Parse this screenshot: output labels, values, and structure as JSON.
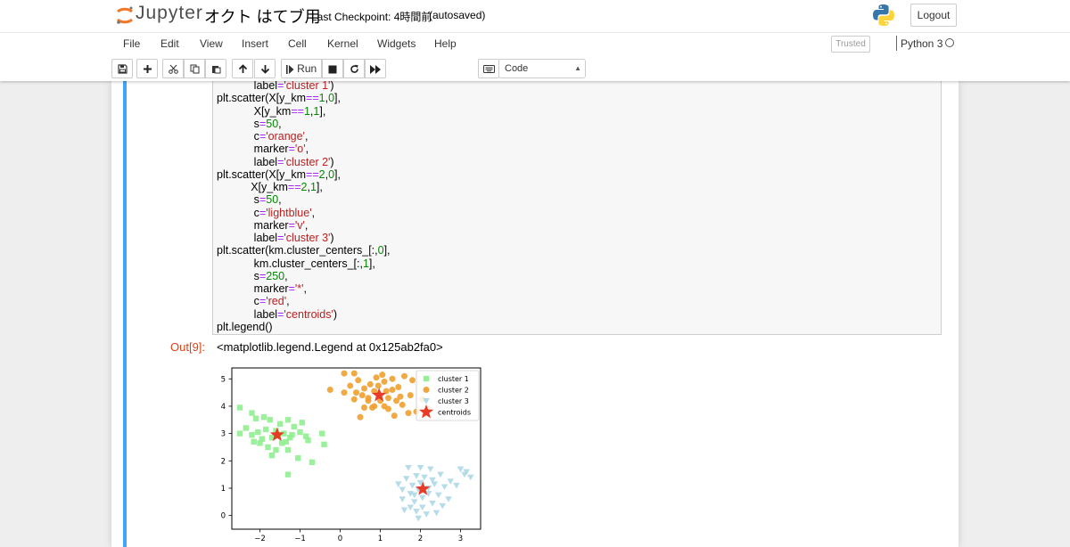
{
  "header": {
    "logo_text": "Jupyter",
    "notebook_title": "オクト はてブ用",
    "checkpoint": "Last Checkpoint: 4時間前",
    "autosave": "(autosaved)",
    "logout_label": "Logout"
  },
  "menu": {
    "items": [
      "File",
      "Edit",
      "View",
      "Insert",
      "Cell",
      "Kernel",
      "Widgets",
      "Help"
    ],
    "trusted_label": "Trusted",
    "kernel_name": "Python 3"
  },
  "toolbar": {
    "run_label": "Run",
    "cell_type": "Code",
    "icons": [
      "save-icon",
      "plus-icon",
      "cut-icon",
      "copy-icon",
      "paste-icon",
      "arrow-up-icon",
      "arrow-down-icon",
      "run-icon",
      "stop-icon",
      "restart-icon",
      "fast-forward-icon",
      "keyboard-icon"
    ]
  },
  "code_lines": [
    [
      [
        "            label",
        "n"
      ],
      [
        "=",
        "o"
      ],
      [
        "'cluster 1'",
        "s"
      ],
      [
        ")",
        "n"
      ]
    ],
    [
      [
        "plt.scatter(X[y_km",
        "n"
      ],
      [
        "==",
        "o"
      ],
      [
        "1",
        "m"
      ],
      [
        ",",
        "n"
      ],
      [
        "0",
        "m"
      ],
      [
        "],",
        "n"
      ]
    ],
    [
      [
        "            X[y_km",
        "n"
      ],
      [
        "==",
        "o"
      ],
      [
        "1",
        "m"
      ],
      [
        ",",
        "n"
      ],
      [
        "1",
        "m"
      ],
      [
        "],",
        "n"
      ]
    ],
    [
      [
        "            s",
        "n"
      ],
      [
        "=",
        "o"
      ],
      [
        "50",
        "m"
      ],
      [
        ",",
        "n"
      ]
    ],
    [
      [
        "            c",
        "n"
      ],
      [
        "=",
        "o"
      ],
      [
        "'orange'",
        "s"
      ],
      [
        ",",
        "n"
      ]
    ],
    [
      [
        "            marker",
        "n"
      ],
      [
        "=",
        "o"
      ],
      [
        "'o'",
        "s"
      ],
      [
        ",",
        "n"
      ]
    ],
    [
      [
        "            label",
        "n"
      ],
      [
        "=",
        "o"
      ],
      [
        "'cluster 2'",
        "s"
      ],
      [
        ")",
        "n"
      ]
    ],
    [
      [
        "plt.scatter(X[y_km",
        "n"
      ],
      [
        "==",
        "o"
      ],
      [
        "2",
        "m"
      ],
      [
        ",",
        "n"
      ],
      [
        "0",
        "m"
      ],
      [
        "],",
        "n"
      ]
    ],
    [
      [
        "           X[y_km",
        "n"
      ],
      [
        "==",
        "o"
      ],
      [
        "2",
        "m"
      ],
      [
        ",",
        "n"
      ],
      [
        "1",
        "m"
      ],
      [
        "],",
        "n"
      ]
    ],
    [
      [
        "            s",
        "n"
      ],
      [
        "=",
        "o"
      ],
      [
        "50",
        "m"
      ],
      [
        ",",
        "n"
      ]
    ],
    [
      [
        "            c",
        "n"
      ],
      [
        "=",
        "o"
      ],
      [
        "'lightblue'",
        "s"
      ],
      [
        ",",
        "n"
      ]
    ],
    [
      [
        "            marker",
        "n"
      ],
      [
        "=",
        "o"
      ],
      [
        "'v'",
        "s"
      ],
      [
        ",",
        "n"
      ]
    ],
    [
      [
        "            label",
        "n"
      ],
      [
        "=",
        "o"
      ],
      [
        "'cluster 3'",
        "s"
      ],
      [
        ")",
        "n"
      ]
    ],
    [
      [
        "plt.scatter(km.cluster_centers_[:,",
        "n"
      ],
      [
        "0",
        "m"
      ],
      [
        "],",
        "n"
      ]
    ],
    [
      [
        "            km.cluster_centers_[:,",
        "n"
      ],
      [
        "1",
        "m"
      ],
      [
        "],",
        "n"
      ]
    ],
    [
      [
        "            s",
        "n"
      ],
      [
        "=",
        "o"
      ],
      [
        "250",
        "m"
      ],
      [
        ",",
        "n"
      ]
    ],
    [
      [
        "            marker",
        "n"
      ],
      [
        "=",
        "o"
      ],
      [
        "'*'",
        "s"
      ],
      [
        ",",
        "n"
      ]
    ],
    [
      [
        "            c",
        "n"
      ],
      [
        "=",
        "o"
      ],
      [
        "'red'",
        "s"
      ],
      [
        ",",
        "n"
      ]
    ],
    [
      [
        "            label",
        "n"
      ],
      [
        "=",
        "o"
      ],
      [
        "'centroids'",
        "s"
      ],
      [
        ")",
        "n"
      ]
    ],
    [
      [
        "plt.legend()",
        "n"
      ]
    ]
  ],
  "output": {
    "prompt": "Out[9]:",
    "text": "<matplotlib.legend.Legend at 0x125ab2fa0>"
  },
  "chart_data": {
    "type": "scatter",
    "xlim": [
      -2.7,
      3.5
    ],
    "ylim": [
      -0.5,
      5.4
    ],
    "xticks": [
      -2,
      -1,
      0,
      1,
      2,
      3
    ],
    "yticks": [
      0,
      1,
      2,
      3,
      4,
      5
    ],
    "tick_labels_x": [
      "−2",
      "−1",
      "0",
      "1",
      "2",
      "3"
    ],
    "tick_labels_y": [
      "0",
      "1",
      "2",
      "3",
      "4",
      "5"
    ],
    "legend_position": "top-right",
    "grid": false,
    "series": [
      {
        "name": "cluster 1",
        "color": "#90ee90",
        "marker": "square",
        "points": [
          [
            -2.5,
            3.95
          ],
          [
            -2.2,
            3.75
          ],
          [
            -2.1,
            3.55
          ],
          [
            -2.5,
            3.0
          ],
          [
            -2.35,
            3.2
          ],
          [
            -2.2,
            2.95
          ],
          [
            -2.05,
            3.05
          ],
          [
            -1.95,
            2.8
          ],
          [
            -1.85,
            3.15
          ],
          [
            -1.75,
            3.5
          ],
          [
            -2.0,
            2.65
          ],
          [
            -2.15,
            2.7
          ],
          [
            -1.8,
            2.5
          ],
          [
            -1.7,
            2.85
          ],
          [
            -1.6,
            3.1
          ],
          [
            -1.5,
            3.35
          ],
          [
            -1.4,
            3.0
          ],
          [
            -1.35,
            2.7
          ],
          [
            -1.3,
            3.5
          ],
          [
            -1.2,
            2.95
          ],
          [
            -1.15,
            3.25
          ],
          [
            -1.0,
            3.05
          ],
          [
            -0.95,
            3.4
          ],
          [
            -0.85,
            2.9
          ],
          [
            -0.8,
            2.75
          ],
          [
            -1.6,
            2.4
          ],
          [
            -1.45,
            2.65
          ],
          [
            -1.7,
            2.2
          ],
          [
            -1.3,
            2.4
          ],
          [
            -1.05,
            2.1
          ],
          [
            -0.7,
            1.95
          ],
          [
            -0.45,
            3.0
          ],
          [
            -0.4,
            2.6
          ],
          [
            -1.3,
            1.5
          ],
          [
            -1.9,
            3.6
          ],
          [
            -1.55,
            2.95
          ],
          [
            -1.25,
            2.85
          ]
        ]
      },
      {
        "name": "cluster 2",
        "color": "#f0a030",
        "marker": "circle",
        "points": [
          [
            -0.25,
            4.6
          ],
          [
            0.1,
            4.5
          ],
          [
            0.1,
            5.2
          ],
          [
            0.25,
            4.75
          ],
          [
            0.35,
            5.2
          ],
          [
            0.35,
            4.25
          ],
          [
            0.4,
            4.5
          ],
          [
            0.45,
            4.95
          ],
          [
            0.55,
            4.4
          ],
          [
            0.6,
            3.95
          ],
          [
            0.6,
            4.65
          ],
          [
            0.7,
            4.3
          ],
          [
            0.7,
            4.2
          ],
          [
            0.75,
            4.8
          ],
          [
            0.8,
            3.95
          ],
          [
            0.85,
            4.55
          ],
          [
            0.9,
            5.05
          ],
          [
            0.95,
            4.75
          ],
          [
            1.0,
            4.2
          ],
          [
            1.05,
            5.15
          ],
          [
            1.1,
            4.0
          ],
          [
            1.1,
            4.9
          ],
          [
            1.15,
            4.55
          ],
          [
            1.2,
            3.9
          ],
          [
            1.2,
            4.3
          ],
          [
            1.3,
            4.6
          ],
          [
            1.3,
            5.0
          ],
          [
            1.35,
            3.65
          ],
          [
            1.4,
            4.2
          ],
          [
            1.45,
            4.7
          ],
          [
            1.55,
            4.05
          ],
          [
            1.6,
            5.1
          ],
          [
            1.7,
            3.75
          ],
          [
            1.75,
            4.4
          ],
          [
            1.8,
            4.95
          ],
          [
            1.9,
            3.8
          ],
          [
            2.1,
            3.7
          ],
          [
            2.2,
            3.9
          ],
          [
            0.5,
            3.6
          ],
          [
            0.85,
            4.0
          ],
          [
            1.5,
            4.35
          ],
          [
            2.05,
            4.25
          ]
        ]
      },
      {
        "name": "cluster 3",
        "color": "#add8e6",
        "marker": "triangle-down",
        "points": [
          [
            1.45,
            1.15
          ],
          [
            1.55,
            0.95
          ],
          [
            1.55,
            0.6
          ],
          [
            1.65,
            1.35
          ],
          [
            1.7,
            1.75
          ],
          [
            1.75,
            0.8
          ],
          [
            1.75,
            0.3
          ],
          [
            1.8,
            1.1
          ],
          [
            1.85,
            0.5
          ],
          [
            1.9,
            1.45
          ],
          [
            1.9,
            0.15
          ],
          [
            1.95,
            0.95
          ],
          [
            1.95,
            -0.1
          ],
          [
            2.0,
            1.75
          ],
          [
            2.0,
            1.2
          ],
          [
            2.05,
            0.65
          ],
          [
            2.05,
            0.3
          ],
          [
            2.1,
            1.4
          ],
          [
            2.15,
            0.05
          ],
          [
            2.2,
            0.8
          ],
          [
            2.2,
            1.0
          ],
          [
            2.25,
            1.7
          ],
          [
            2.3,
            0.45
          ],
          [
            2.35,
            1.15
          ],
          [
            2.4,
            0.1
          ],
          [
            2.45,
            0.75
          ],
          [
            2.5,
            1.5
          ],
          [
            2.55,
            0.35
          ],
          [
            2.6,
            1.05
          ],
          [
            2.7,
            0.6
          ],
          [
            2.75,
            1.25
          ],
          [
            2.9,
            1.1
          ],
          [
            3.0,
            1.7
          ],
          [
            3.1,
            1.5
          ],
          [
            3.15,
            1.6
          ],
          [
            3.25,
            1.4
          ],
          [
            1.6,
            0.2
          ],
          [
            2.3,
            1.3
          ],
          [
            1.85,
            0.75
          ]
        ]
      },
      {
        "name": "centroids",
        "color": "#e8301c",
        "marker": "star",
        "points": [
          [
            -1.57,
            2.95
          ],
          [
            0.97,
            4.4
          ],
          [
            2.06,
            0.97
          ]
        ]
      }
    ]
  }
}
